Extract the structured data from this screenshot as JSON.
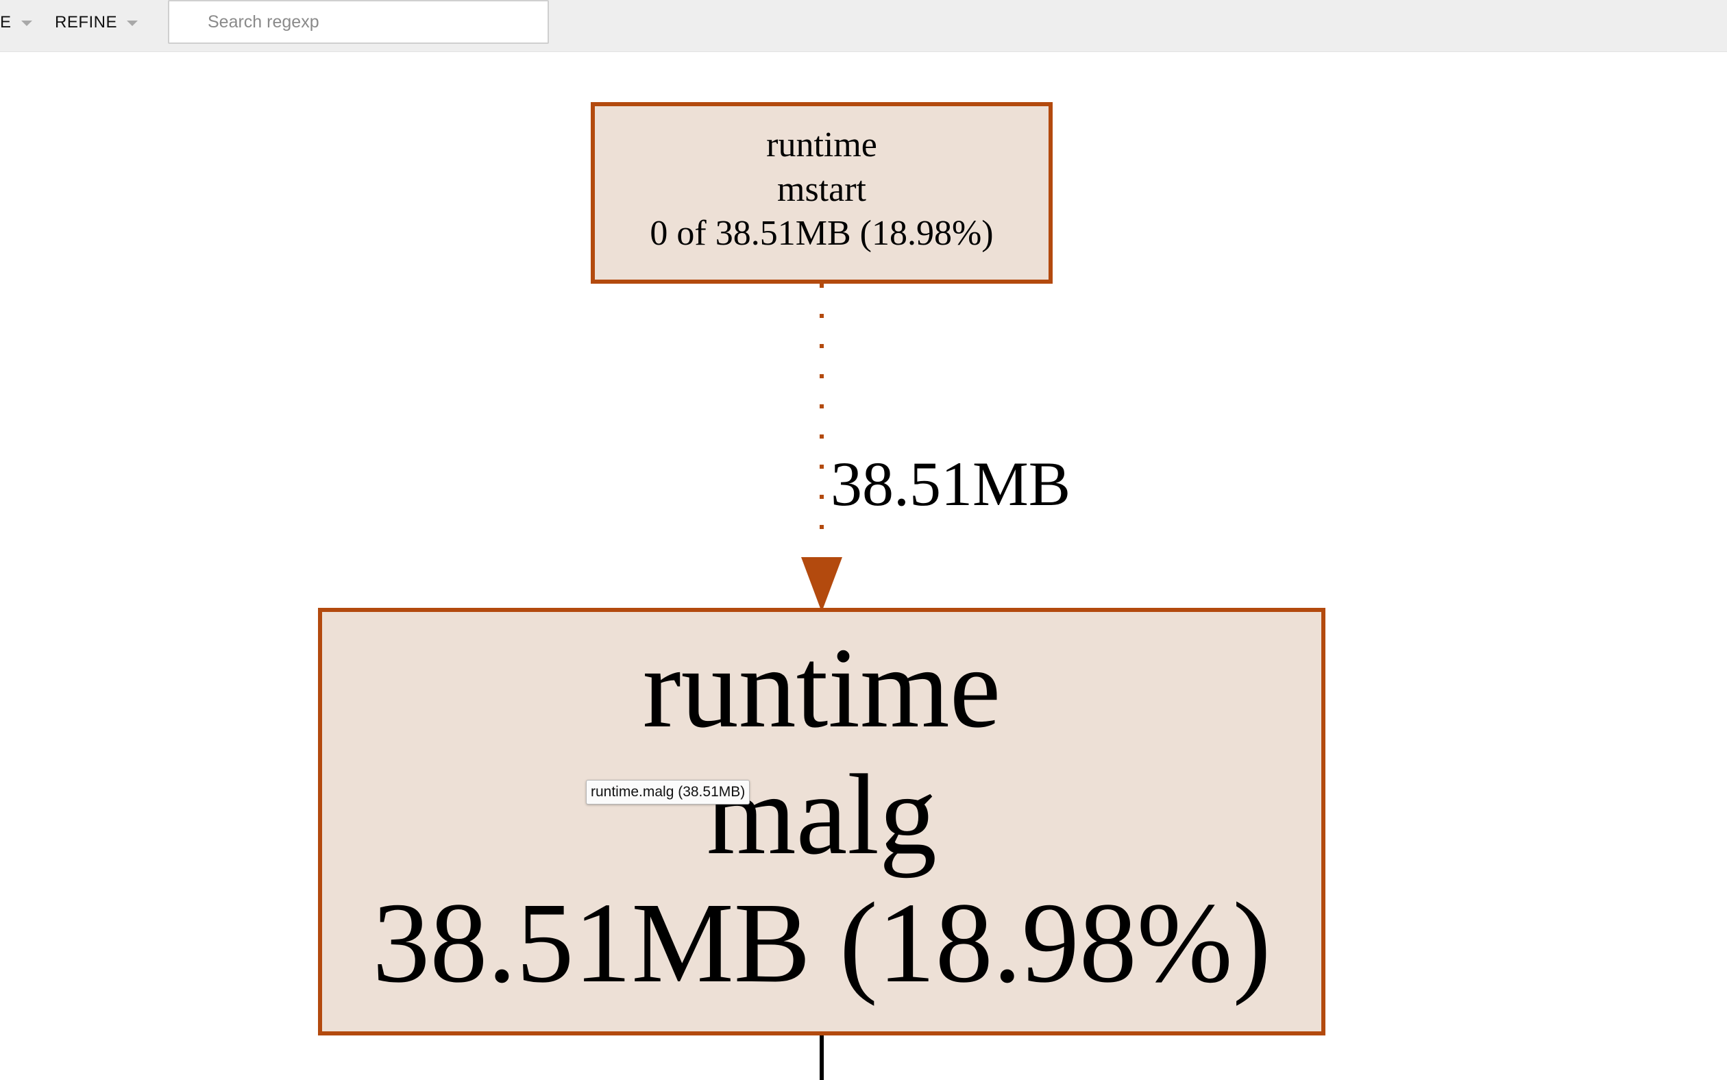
{
  "toolbar": {
    "view_label": "E",
    "refine_label": "REFINE",
    "search_placeholder": "Search regexp"
  },
  "graph": {
    "colors": {
      "node_fill": "#ede0d6",
      "node_border": "#b34a0e",
      "edge": "#b34a0e",
      "outgoing_edge": "#000000"
    },
    "nodes": [
      {
        "id": "mstart",
        "package": "runtime",
        "function": "mstart",
        "stats": "0 of 38.51MB (18.98%)"
      },
      {
        "id": "malg",
        "package": "runtime",
        "function": "malg",
        "stats": "38.51MB (18.98%)"
      }
    ],
    "edges": [
      {
        "from": "mstart",
        "to": "malg",
        "label": "38.51MB",
        "style": "dotted"
      }
    ]
  },
  "tooltip": {
    "text": "runtime.malg (38.51MB)"
  }
}
